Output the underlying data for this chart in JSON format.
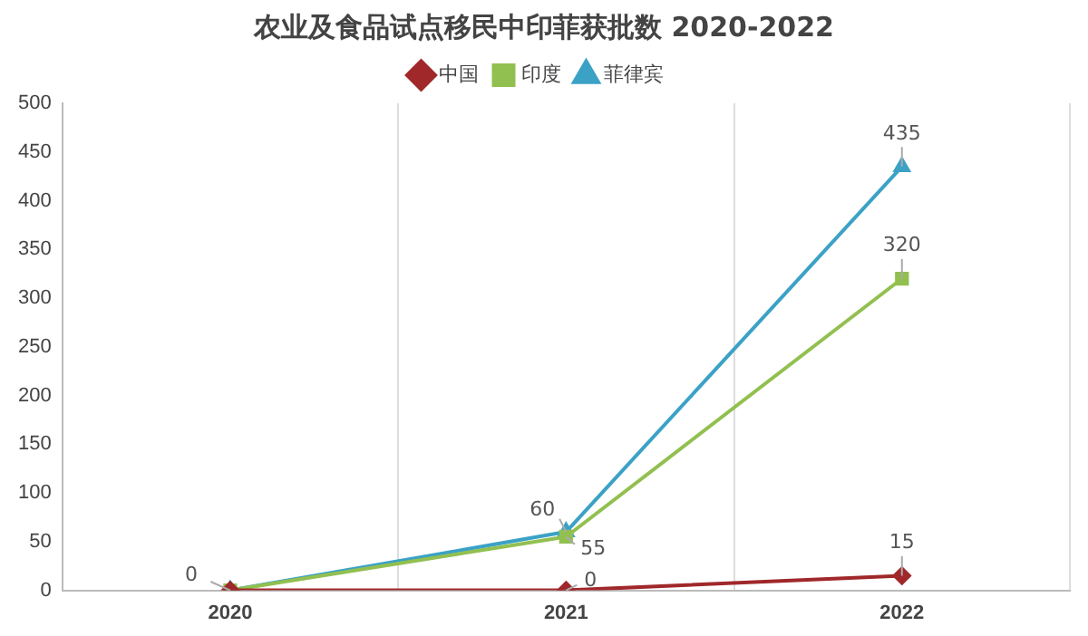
{
  "chart_data": {
    "type": "line",
    "title": "农业及食品试点移民中印菲获批数 2020-2022",
    "categories": [
      "2020",
      "2021",
      "2022"
    ],
    "series": [
      {
        "name": "中国",
        "color": "#a0282a",
        "marker": "diamond",
        "values": [
          0,
          0,
          15
        ],
        "value_labels": [
          null,
          "0",
          "15"
        ]
      },
      {
        "name": "印度",
        "color": "#92c050",
        "marker": "square",
        "values": [
          0,
          55,
          320
        ],
        "value_labels": [
          null,
          "55",
          "320"
        ]
      },
      {
        "name": "菲律宾",
        "color": "#3ba2c6",
        "marker": "triangle",
        "values": [
          0,
          60,
          435
        ],
        "value_labels": [
          "0",
          "60",
          "435"
        ]
      }
    ],
    "ylim": [
      0,
      500
    ],
    "yticks": [
      0,
      50,
      100,
      150,
      200,
      250,
      300,
      350,
      400,
      450,
      500
    ],
    "grid": "x",
    "legend": "top",
    "line_style": "solid"
  }
}
